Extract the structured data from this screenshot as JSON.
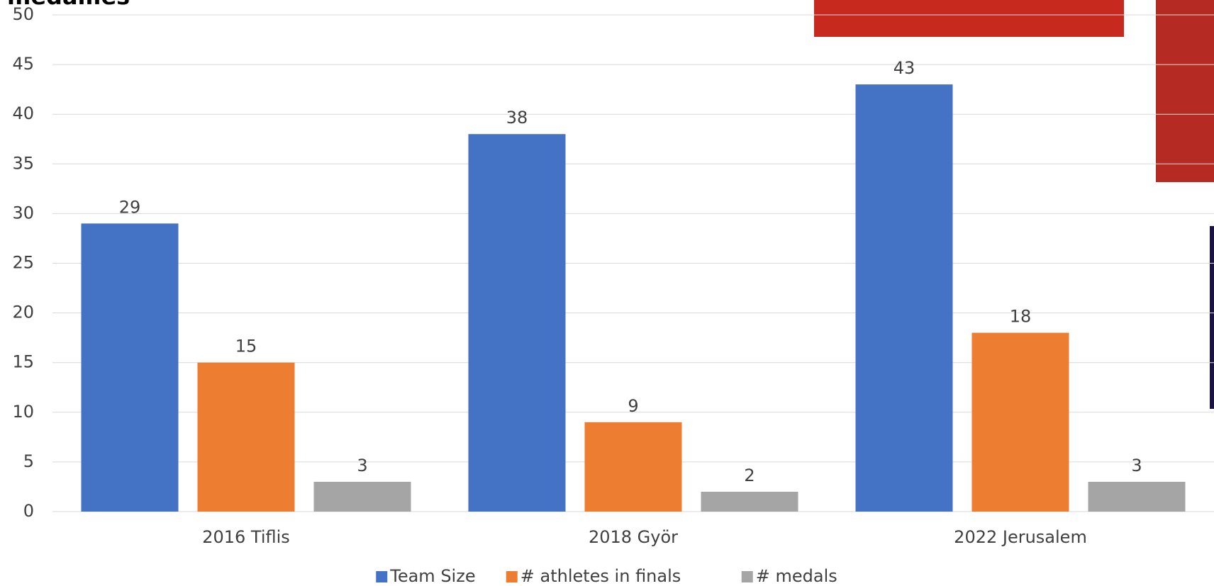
{
  "chart_data": {
    "type": "bar",
    "title": "medailles",
    "categories": [
      "2016 Tiflis",
      "2018 Györ",
      "2022 Jerusalem"
    ],
    "series": [
      {
        "name": "Team Size",
        "color": "#4472c4",
        "values": [
          29,
          38,
          43
        ]
      },
      {
        "name": "# athletes in finals",
        "color": "#ed7d31",
        "values": [
          15,
          9,
          18
        ]
      },
      {
        "name": "# medals",
        "color": "#a5a5a5",
        "values": [
          3,
          2,
          3
        ]
      }
    ],
    "ylim": [
      0,
      50
    ],
    "yticks": [
      0,
      5,
      10,
      15,
      20,
      25,
      30,
      35,
      40,
      45,
      50
    ],
    "grid": true,
    "legend": "bottom"
  }
}
